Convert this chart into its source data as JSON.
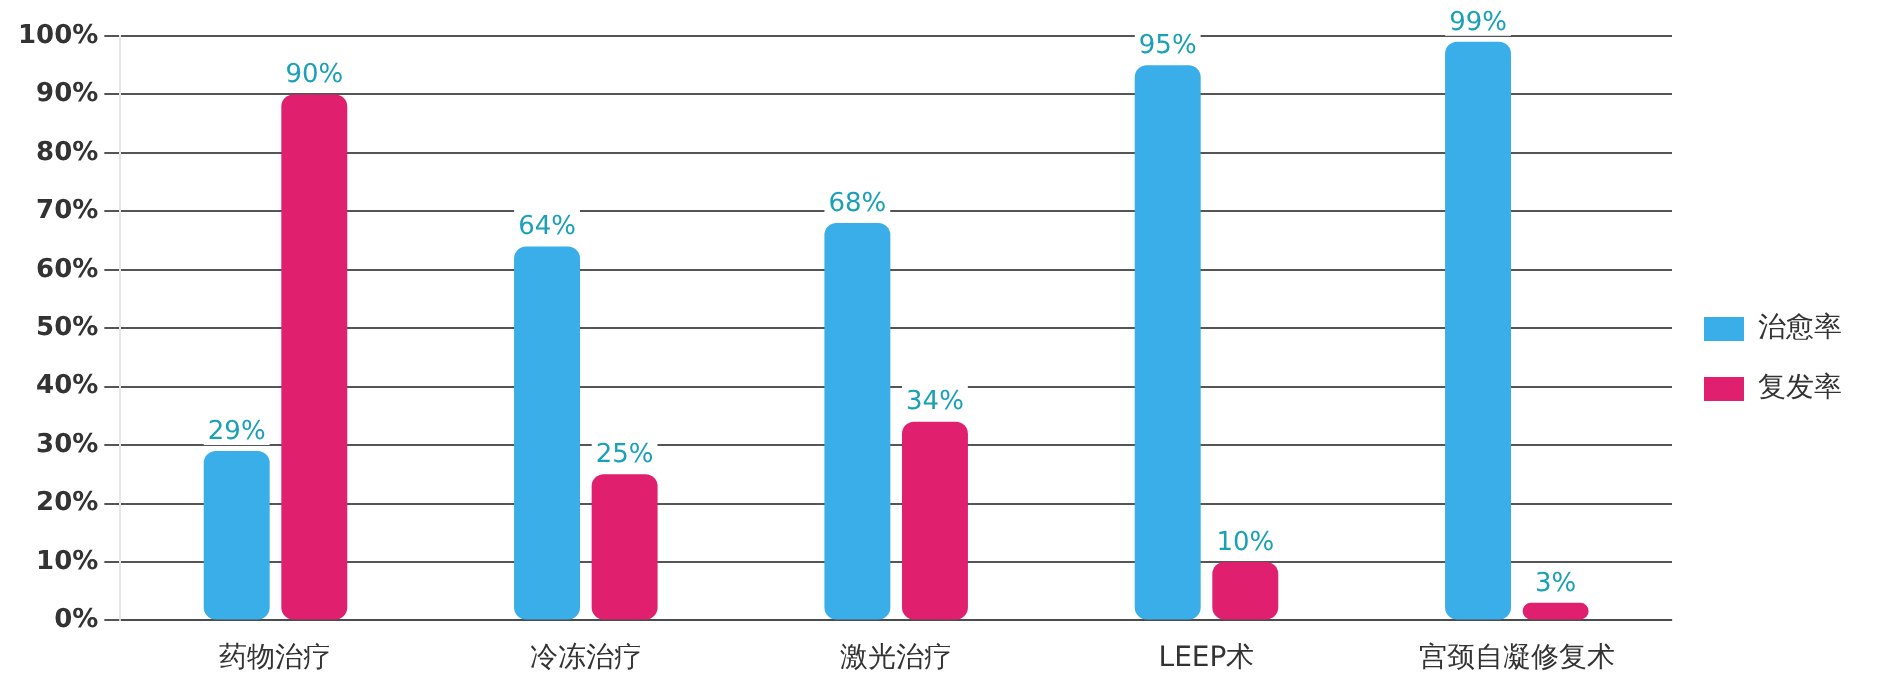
{
  "chart_data": {
    "type": "bar",
    "categories": [
      "药物治疗",
      "冷冻治疗",
      "激光治疗",
      "LEEP术",
      "宫颈自凝修复术"
    ],
    "series": [
      {
        "name": "治愈率",
        "color": "#3aaee8",
        "values": [
          29,
          64,
          68,
          95,
          99
        ],
        "value_labels": [
          "29%",
          "64%",
          "68%",
          "95%",
          "99%"
        ]
      },
      {
        "name": "复发率",
        "color": "#e0206e",
        "values": [
          90,
          25,
          34,
          10,
          3
        ],
        "value_labels": [
          "90%",
          "25%",
          "34%",
          "10%",
          "3%"
        ]
      }
    ],
    "ylim": [
      0,
      100
    ],
    "yticks": [
      {
        "value": 0,
        "label": "0%"
      },
      {
        "value": 10,
        "label": "10%"
      },
      {
        "value": 20,
        "label": "20%"
      },
      {
        "value": 30,
        "label": "30%"
      },
      {
        "value": 40,
        "label": "40%"
      },
      {
        "value": 50,
        "label": "50%"
      },
      {
        "value": 60,
        "label": "60%"
      },
      {
        "value": 70,
        "label": "70%"
      },
      {
        "value": 80,
        "label": "80%"
      },
      {
        "value": 90,
        "label": "90%"
      },
      {
        "value": 100,
        "label": "100%"
      }
    ],
    "grid": "y",
    "legend": "right"
  }
}
